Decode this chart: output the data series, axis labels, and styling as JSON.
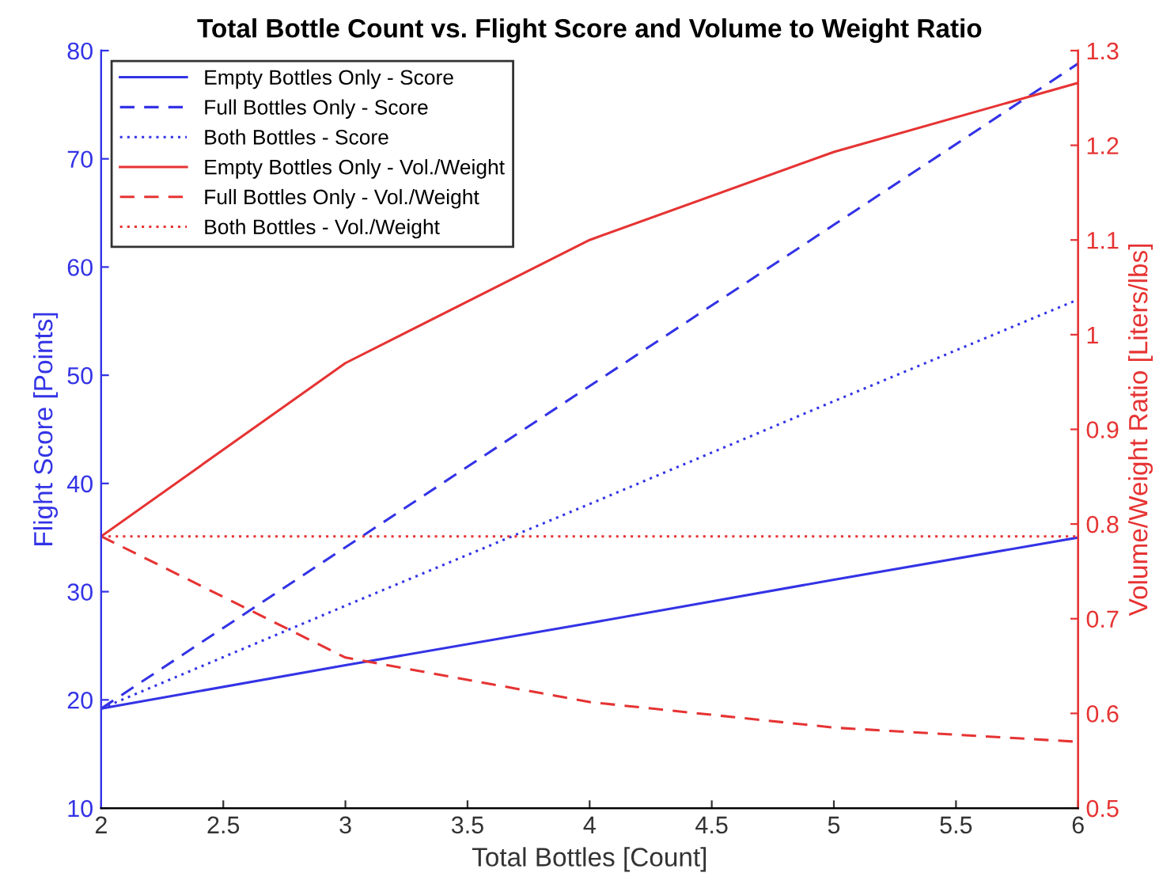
{
  "chart_data": {
    "type": "line",
    "title": "Total Bottle Count vs. Flight Score and Volume to Weight Ratio",
    "xlabel": "Total Bottles [Count]",
    "ylabel": "Flight Score [Points]",
    "y2label": "Volume/Weight Ratio [Liters/lbs]",
    "x": [
      2,
      3,
      4,
      5,
      6
    ],
    "xlim": [
      2,
      6
    ],
    "xticks": [
      2,
      2.5,
      3,
      3.5,
      4,
      4.5,
      5,
      5.5,
      6
    ],
    "ylim": [
      10,
      80
    ],
    "yticks": [
      10,
      20,
      30,
      40,
      50,
      60,
      70,
      80
    ],
    "y2lim": [
      0.5,
      1.3
    ],
    "y2ticks": [
      0.5,
      0.6,
      0.7,
      0.8,
      0.9,
      1,
      1.1,
      1.2,
      1.3
    ],
    "legend": "top left",
    "grid": false,
    "marker": "none",
    "series": [
      {
        "name": "Empty Bottles Only - Score",
        "color": "#3333e6",
        "line_style": "solid",
        "values": [
          19.2,
          23.2,
          27.1,
          31.1,
          35
        ]
      },
      {
        "name": "Full Bottles Only - Score",
        "color": "#3333e6",
        "line_style": "dashed",
        "values": [
          19.2,
          34.1,
          49,
          63.9,
          78.8
        ]
      },
      {
        "name": "Both Bottles - Score",
        "color": "#3333e6",
        "line_style": "dotted",
        "values": [
          19.2,
          28.7,
          38.1,
          47.6,
          57
        ]
      },
      {
        "name": "Empty Bottles Only - Vol./Weight",
        "color": "#e63333",
        "line_style": "solid",
        "axis": "y2",
        "values": [
          0.787,
          0.97,
          1.1,
          1.193,
          1.266
        ]
      },
      {
        "name": "Full Bottles Only - Vol./Weight",
        "color": "#e63333",
        "line_style": "dashed",
        "axis": "y2",
        "values": [
          0.787,
          0.659,
          0.612,
          0.585,
          0.57
        ]
      },
      {
        "name": "Both Bottles - Vol./Weight",
        "color": "#e63333",
        "line_style": "dotted",
        "axis": "y2",
        "values": [
          0.787,
          0.787,
          0.787,
          0.787,
          0.787
        ]
      }
    ]
  }
}
